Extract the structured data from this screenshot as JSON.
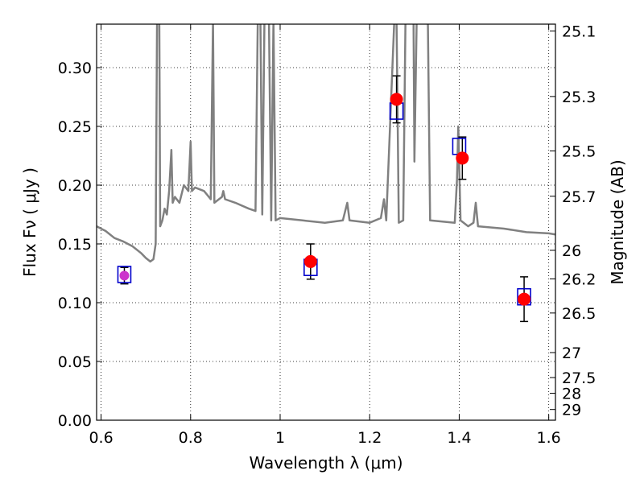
{
  "chart_data": {
    "type": "scatter",
    "xlabel": "Wavelength  λ (μm)",
    "ylabel": "Flux  Fν  ( μJy )",
    "y2label": "Magnitude (AB)",
    "xlim": [
      0.59,
      1.615
    ],
    "ylim": [
      0.0,
      0.337
    ],
    "grid": true,
    "colors": {
      "sed": "#808080",
      "observed": "#ff0000",
      "model": "#0000cc",
      "purple_point": "#cc33cc",
      "errorbar": "#000000"
    },
    "x_ticks": [
      {
        "value": 0.6,
        "label": "0.6"
      },
      {
        "value": 0.8,
        "label": "0.8"
      },
      {
        "value": 1.0,
        "label": "1"
      },
      {
        "value": 1.2,
        "label": "1.2"
      },
      {
        "value": 1.4,
        "label": "1.4"
      },
      {
        "value": 1.6,
        "label": "1.6"
      }
    ],
    "y_ticks": [
      {
        "value": 0.0,
        "label": "0.00"
      },
      {
        "value": 0.05,
        "label": "0.05"
      },
      {
        "value": 0.1,
        "label": "0.10"
      },
      {
        "value": 0.15,
        "label": "0.15"
      },
      {
        "value": 0.2,
        "label": "0.20"
      },
      {
        "value": 0.25,
        "label": "0.25"
      },
      {
        "value": 0.3,
        "label": "0.30"
      }
    ],
    "mag_ticks": [
      {
        "value": 25.1,
        "label": "25.1"
      },
      {
        "value": 25.3,
        "label": "25.3"
      },
      {
        "value": 25.5,
        "label": "25.5"
      },
      {
        "value": 25.7,
        "label": "25.7"
      },
      {
        "value": 26.0,
        "label": "26"
      },
      {
        "value": 26.2,
        "label": "26.2"
      },
      {
        "value": 26.5,
        "label": "26.5"
      },
      {
        "value": 27.0,
        "label": "27"
      },
      {
        "value": 27.5,
        "label": "27.5"
      },
      {
        "value": 28.0,
        "label": "28"
      },
      {
        "value": 29.0,
        "label": "29"
      }
    ],
    "observed": [
      {
        "x": 1.068,
        "y": 0.135,
        "yerr": 0.015
      },
      {
        "x": 1.26,
        "y": 0.273,
        "yerr": 0.02
      },
      {
        "x": 1.407,
        "y": 0.223,
        "yerr": 0.018
      },
      {
        "x": 1.545,
        "y": 0.103,
        "yerr": 0.019
      }
    ],
    "purple_point": {
      "x": 0.652,
      "y": 0.123,
      "yerr": 0.007
    },
    "model_points": [
      {
        "x": 0.652,
        "y": 0.124
      },
      {
        "x": 1.068,
        "y": 0.13
      },
      {
        "x": 1.26,
        "y": 0.263
      },
      {
        "x": 1.4,
        "y": 0.233
      },
      {
        "x": 1.545,
        "y": 0.105
      }
    ],
    "sed": [
      [
        0.59,
        0.165
      ],
      [
        0.61,
        0.161
      ],
      [
        0.63,
        0.155
      ],
      [
        0.65,
        0.152
      ],
      [
        0.67,
        0.148
      ],
      [
        0.69,
        0.142
      ],
      [
        0.7,
        0.138
      ],
      [
        0.71,
        0.135
      ],
      [
        0.717,
        0.137
      ],
      [
        0.722,
        0.15
      ],
      [
        0.725,
        0.34
      ],
      [
        0.73,
        0.34
      ],
      [
        0.732,
        0.165
      ],
      [
        0.737,
        0.17
      ],
      [
        0.742,
        0.18
      ],
      [
        0.747,
        0.175
      ],
      [
        0.752,
        0.195
      ],
      [
        0.757,
        0.23
      ],
      [
        0.76,
        0.185
      ],
      [
        0.765,
        0.19
      ],
      [
        0.775,
        0.185
      ],
      [
        0.785,
        0.2
      ],
      [
        0.795,
        0.195
      ],
      [
        0.8,
        0.237
      ],
      [
        0.803,
        0.195
      ],
      [
        0.81,
        0.198
      ],
      [
        0.83,
        0.195
      ],
      [
        0.845,
        0.188
      ],
      [
        0.85,
        0.34
      ],
      [
        0.853,
        0.185
      ],
      [
        0.87,
        0.19
      ],
      [
        0.873,
        0.195
      ],
      [
        0.877,
        0.188
      ],
      [
        0.9,
        0.185
      ],
      [
        0.93,
        0.18
      ],
      [
        0.945,
        0.178
      ],
      [
        0.95,
        0.34
      ],
      [
        0.956,
        0.34
      ],
      [
        0.96,
        0.175
      ],
      [
        0.965,
        0.34
      ],
      [
        0.975,
        0.34
      ],
      [
        0.98,
        0.17
      ],
      [
        0.985,
        0.34
      ],
      [
        0.99,
        0.17
      ],
      [
        1.0,
        0.172
      ],
      [
        1.05,
        0.17
      ],
      [
        1.1,
        0.168
      ],
      [
        1.14,
        0.17
      ],
      [
        1.15,
        0.185
      ],
      [
        1.155,
        0.17
      ],
      [
        1.2,
        0.168
      ],
      [
        1.225,
        0.172
      ],
      [
        1.232,
        0.188
      ],
      [
        1.237,
        0.17
      ],
      [
        1.255,
        0.34
      ],
      [
        1.26,
        0.34
      ],
      [
        1.265,
        0.168
      ],
      [
        1.275,
        0.17
      ],
      [
        1.28,
        0.34
      ],
      [
        1.298,
        0.34
      ],
      [
        1.3,
        0.22
      ],
      [
        1.305,
        0.34
      ],
      [
        1.33,
        0.34
      ],
      [
        1.335,
        0.17
      ],
      [
        1.39,
        0.168
      ],
      [
        1.395,
        0.205
      ],
      [
        1.398,
        0.25
      ],
      [
        1.403,
        0.17
      ],
      [
        1.42,
        0.165
      ],
      [
        1.432,
        0.168
      ],
      [
        1.437,
        0.185
      ],
      [
        1.442,
        0.165
      ],
      [
        1.5,
        0.163
      ],
      [
        1.55,
        0.16
      ],
      [
        1.6,
        0.159
      ],
      [
        1.615,
        0.158
      ]
    ]
  }
}
